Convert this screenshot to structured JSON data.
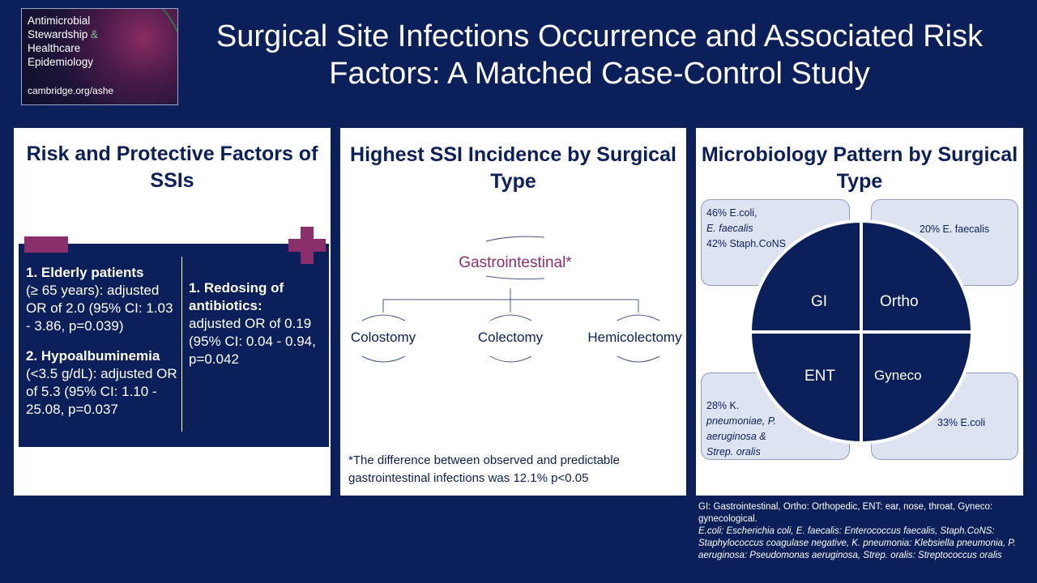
{
  "logo": {
    "line1": "Antimicrobial",
    "line2a": "Stewardship",
    "line2b": " &",
    "line3": "Healthcare",
    "line4": "Epidemiology",
    "url": "cambridge.org/ashe"
  },
  "title": "Surgical Site Infections Occurrence and Associated Risk Factors: A Matched Case-Control Study",
  "risk_panel": {
    "title": "Risk and Protective Factors of SSIs",
    "risk1_bold": "1. Elderly patients",
    "risk1_text": "(≥ 65 years): adjusted OR of 2.0 (95% CI: 1.03 - 3.86, p=0.039)",
    "risk2_bold": "2. Hypoalbuminemia",
    "risk2_text": "(<3.5 g/dL): adjusted OR of 5.3 (95% CI: 1.10 - 25.08, p=0.037",
    "protect1_bold": "1. Redosing of antibiotics:",
    "protect1_text": "adjusted OR of 0.19 (95% CI: 0.04 - 0.94, p=0.042"
  },
  "incidence_panel": {
    "title": "Highest SSI Incidence by Surgical Type",
    "root": "Gastrointestinal*",
    "children": [
      "Colostomy",
      "Colectomy",
      "Hemicolectomy"
    ],
    "footnote": "*The difference between observed and predictable gastrointestinal infections was 12.1% p<0.05"
  },
  "micro_panel": {
    "title": "Microbiology Pattern by Surgical Type",
    "gi_line1": "46% E.coli,",
    "gi_line2": "E. faecalis",
    "gi_line3": "42%  Staph.CoNS",
    "ortho_text": "20% E. faecalis",
    "ent_line1": "28% K.",
    "ent_line2": "pneumoniae, P.",
    "ent_line3": "aeruginosa &",
    "ent_line4": "Strep. oralis",
    "gyneco_text": "33% E.coli",
    "q_gi": "GI",
    "q_ortho": "Ortho",
    "q_ent": "ENT",
    "q_gyneco": "Gyneco"
  },
  "legend": {
    "line1": "GI: Gastrointestinal, Ortho: Orthopedic, ENT: ear, nose, throat, Gyneco: gynecological.",
    "line2": "E.coli: Escherichia coli, E. faecalis: Enterococcus faecalis, Staph.CoNS: Staphylococcus coagulase negative, K. pneumonia: Klebsiella pneumonia, P. aeruginosa: Pseudomonas aeruginosa, Strep. oralis: Streptococcus oralis"
  },
  "colors": {
    "navy": "#0b1f5a",
    "accent": "#8b2f6b",
    "box": "#dde3f0"
  }
}
